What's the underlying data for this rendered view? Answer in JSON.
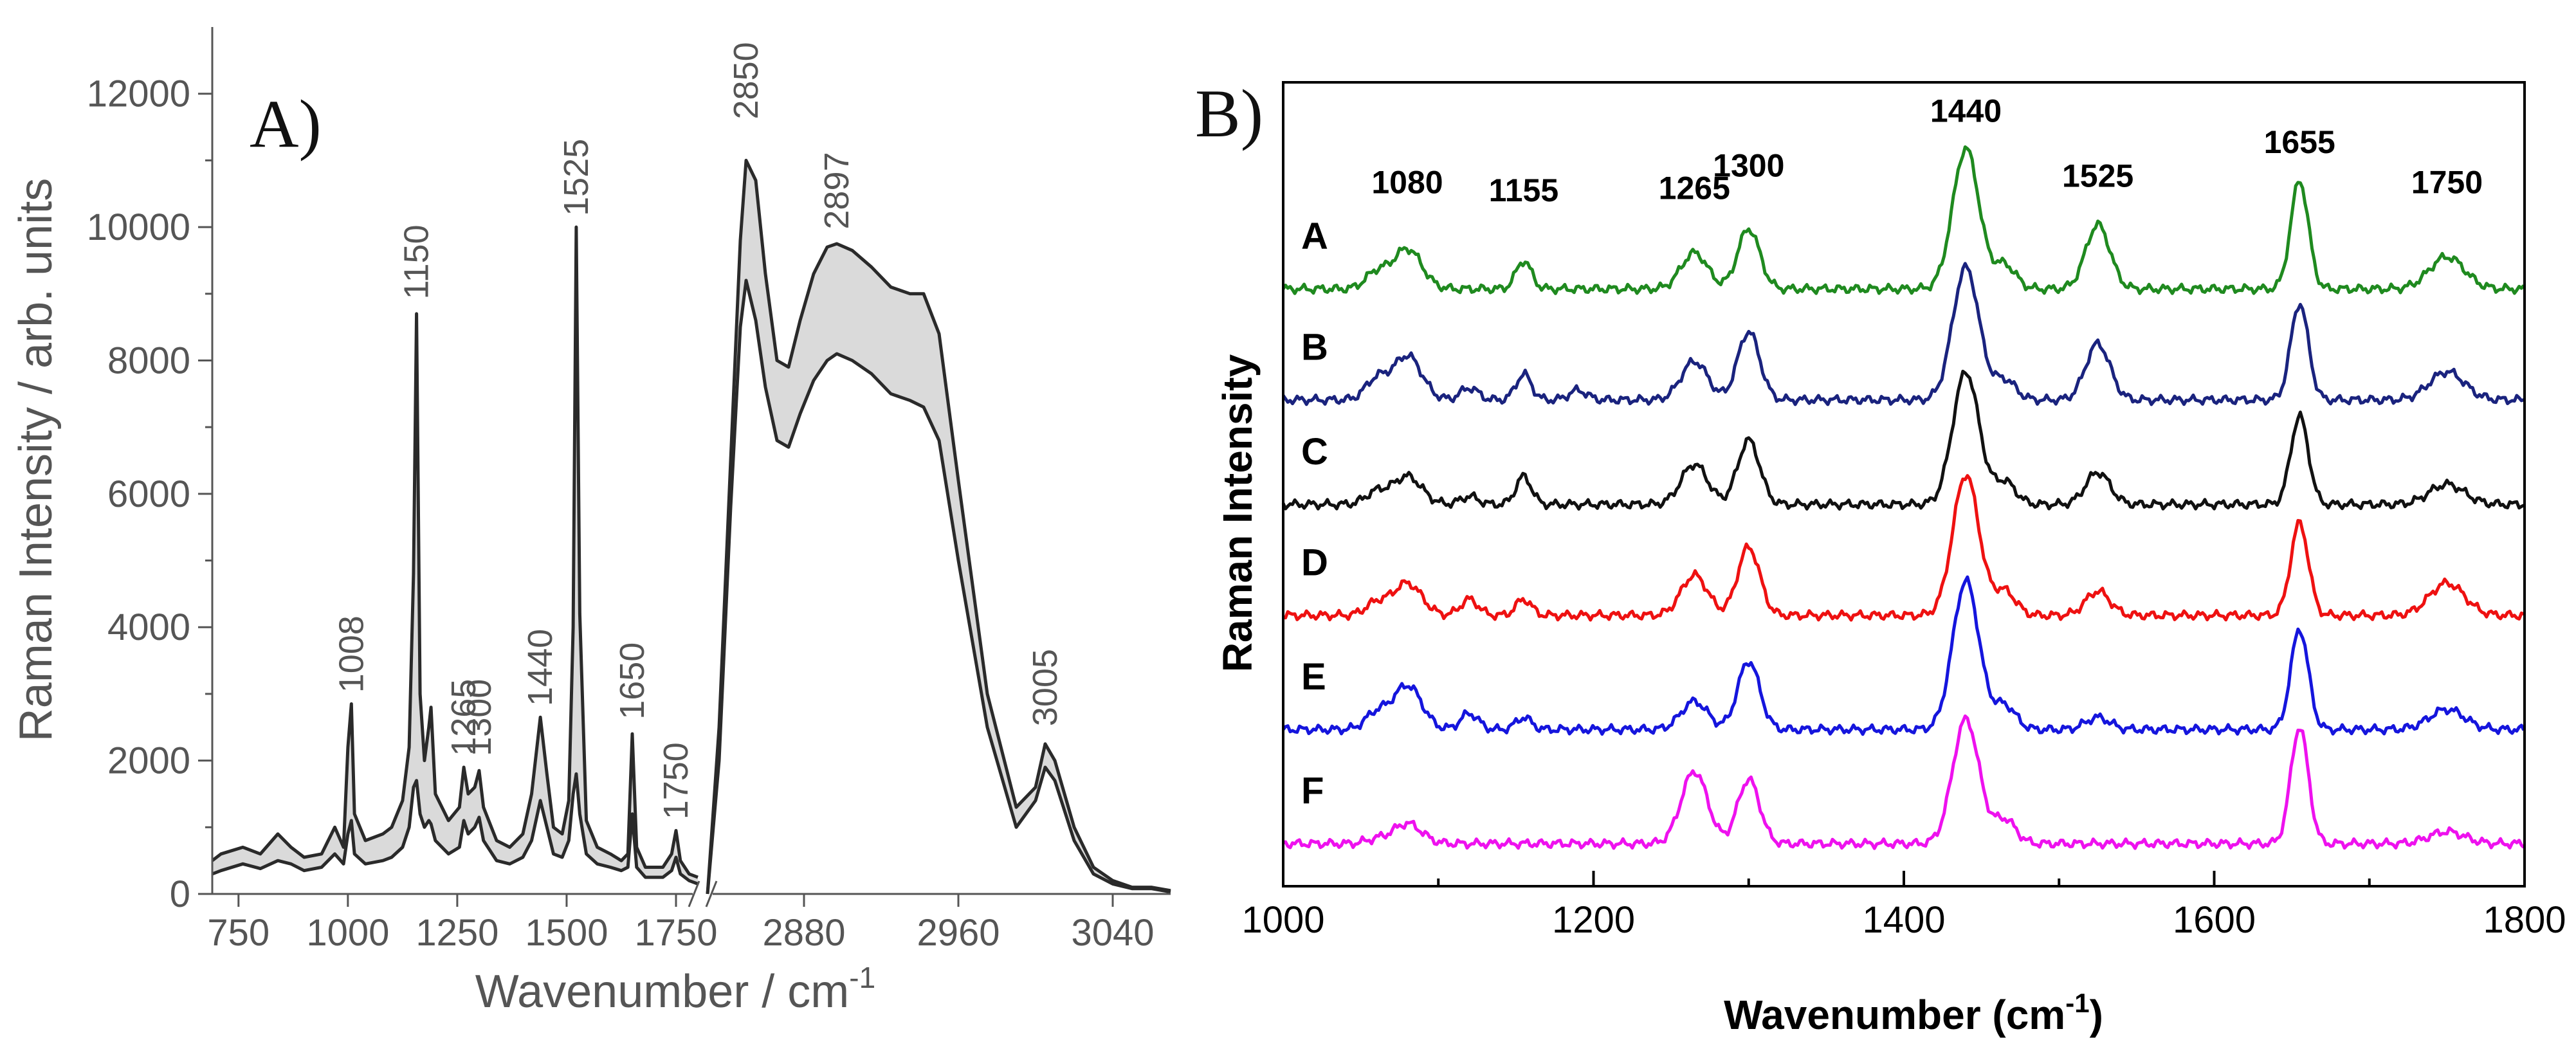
{
  "chart_data": [
    {
      "panel_label": "A)",
      "type": "line",
      "ylabel": "Raman Intensity / arb. units",
      "xlabel": "Wavenumber / cm",
      "xlabel_superscript": "-1",
      "ylim": [
        0,
        13000
      ],
      "yticks": [
        "0",
        "2000",
        "4000",
        "6000",
        "8000",
        "10000",
        "12000"
      ],
      "ytick_values": [
        0,
        2000,
        4000,
        6000,
        8000,
        10000,
        12000
      ],
      "xticks_left": [
        "750",
        "1000",
        "1250",
        "1500",
        "1750"
      ],
      "xtick_values_left": [
        750,
        1000,
        1250,
        1500,
        1750
      ],
      "xticks_right": [
        "2880",
        "2960",
        "3040"
      ],
      "xtick_values_right": [
        2880,
        2960,
        3040
      ],
      "x_segment_left": [
        690,
        1800
      ],
      "x_segment_right": [
        2830,
        3070
      ],
      "axis_break": true,
      "band_color": "#bbbbbb",
      "line_color": "#2a2a2a",
      "peak_labels": [
        {
          "text": "1008",
          "x": 1008,
          "y": 2900
        },
        {
          "text": "1150",
          "x": 1157,
          "y": 8800
        },
        {
          "text": "1265",
          "x": 1265,
          "y": 1950
        },
        {
          "text": "1300",
          "x": 1300,
          "y": 1950
        },
        {
          "text": "1440",
          "x": 1440,
          "y": 2700
        },
        {
          "text": "1525",
          "x": 1522,
          "y": 10050
        },
        {
          "text": "1650",
          "x": 1650,
          "y": 2500
        },
        {
          "text": "1750",
          "x": 1750,
          "y": 1000
        },
        {
          "text": "2850",
          "x": 2850,
          "y": 11500
        },
        {
          "text": "2897",
          "x": 2897,
          "y": 9850
        },
        {
          "text": "3005",
          "x": 3005,
          "y": 2400
        }
      ],
      "series": [
        {
          "name": "upper",
          "left_x": [
            690,
            710,
            760,
            800,
            840,
            870,
            900,
            940,
            970,
            990,
            1000,
            1008,
            1015,
            1040,
            1080,
            1100,
            1125,
            1140,
            1150,
            1157,
            1165,
            1175,
            1185,
            1190,
            1200,
            1230,
            1255,
            1265,
            1275,
            1290,
            1300,
            1310,
            1340,
            1370,
            1400,
            1420,
            1440,
            1455,
            1470,
            1490,
            1505,
            1515,
            1522,
            1530,
            1545,
            1570,
            1600,
            1625,
            1640,
            1650,
            1660,
            1680,
            1720,
            1740,
            1750,
            1760,
            1780,
            1800
          ],
          "left_y": [
            500,
            600,
            700,
            600,
            900,
            700,
            550,
            600,
            1000,
            700,
            2200,
            2850,
            1200,
            800,
            900,
            1000,
            1400,
            2200,
            4800,
            8700,
            3000,
            2000,
            2500,
            2800,
            1500,
            1100,
            1300,
            1900,
            1500,
            1600,
            1850,
            1300,
            800,
            700,
            900,
            1500,
            2650,
            1800,
            1000,
            900,
            1400,
            4000,
            10000,
            4200,
            1100,
            700,
            600,
            500,
            600,
            2400,
            700,
            400,
            400,
            600,
            950,
            500,
            300,
            250
          ],
          "right_x": [
            2830,
            2836,
            2842,
            2847,
            2850,
            2855,
            2860,
            2866,
            2872,
            2878,
            2885,
            2892,
            2897,
            2905,
            2915,
            2925,
            2935,
            2942,
            2950,
            2960,
            2975,
            2990,
            3000,
            3005,
            3010,
            3020,
            3030,
            3040,
            3050,
            3060,
            3070
          ],
          "right_y": [
            0,
            2500,
            6500,
            9800,
            11000,
            10700,
            9300,
            8000,
            7900,
            8600,
            9300,
            9700,
            9750,
            9650,
            9400,
            9100,
            9000,
            9000,
            8400,
            6200,
            3000,
            1300,
            1600,
            2250,
            2000,
            1000,
            400,
            200,
            100,
            100,
            50
          ]
        },
        {
          "name": "lower",
          "left_x": [
            690,
            710,
            760,
            800,
            840,
            870,
            900,
            940,
            970,
            990,
            1000,
            1008,
            1015,
            1040,
            1080,
            1100,
            1125,
            1140,
            1150,
            1157,
            1165,
            1175,
            1185,
            1190,
            1200,
            1230,
            1255,
            1265,
            1275,
            1290,
            1300,
            1310,
            1340,
            1370,
            1400,
            1420,
            1440,
            1455,
            1470,
            1490,
            1505,
            1515,
            1522,
            1530,
            1545,
            1570,
            1600,
            1625,
            1640,
            1650,
            1660,
            1680,
            1720,
            1740,
            1750,
            1760,
            1780,
            1800
          ],
          "left_y": [
            300,
            350,
            450,
            380,
            500,
            450,
            350,
            400,
            600,
            450,
            900,
            1100,
            600,
            450,
            500,
            550,
            700,
            1000,
            1600,
            1700,
            1200,
            1000,
            1100,
            1050,
            800,
            600,
            700,
            1100,
            900,
            1000,
            1150,
            800,
            500,
            450,
            550,
            800,
            1400,
            1000,
            600,
            550,
            800,
            1500,
            1800,
            1200,
            600,
            450,
            400,
            350,
            400,
            1200,
            400,
            250,
            250,
            350,
            550,
            300,
            200,
            150
          ],
          "right_x": [
            2830,
            2836,
            2842,
            2847,
            2850,
            2855,
            2860,
            2866,
            2872,
            2878,
            2885,
            2892,
            2897,
            2905,
            2915,
            2925,
            2935,
            2942,
            2950,
            2960,
            2975,
            2990,
            3000,
            3005,
            3010,
            3020,
            3030,
            3040,
            3050,
            3060,
            3070
          ],
          "right_y": [
            0,
            2000,
            5800,
            8500,
            9200,
            8600,
            7600,
            6800,
            6700,
            7200,
            7700,
            8000,
            8100,
            8000,
            7800,
            7500,
            7400,
            7300,
            6800,
            5000,
            2500,
            1000,
            1400,
            1900,
            1700,
            800,
            300,
            150,
            80,
            80,
            30
          ]
        }
      ]
    },
    {
      "panel_label": "B)",
      "type": "line",
      "ylabel": "Raman Intensity",
      "xlabel": "Wavenumber (cm",
      "xlabel_superscript": "-1",
      "xlabel_suffix": ")",
      "xlim": [
        1000,
        1800
      ],
      "xticks": [
        "1000",
        "1200",
        "1400",
        "1600",
        "1800"
      ],
      "xtick_values": [
        1000,
        1200,
        1400,
        1600,
        1800
      ],
      "y_units": "arbitrary (0 = bottom of plot, 1000 = top of plot)",
      "ylim": [
        0,
        1000
      ],
      "peak_labels": [
        {
          "text": "1080",
          "x": 1080,
          "y": 862
        },
        {
          "text": "1155",
          "x": 1155,
          "y": 852
        },
        {
          "text": "1265",
          "x": 1265,
          "y": 855
        },
        {
          "text": "1300",
          "x": 1300,
          "y": 883
        },
        {
          "text": "1440",
          "x": 1440,
          "y": 951
        },
        {
          "text": "1525",
          "x": 1525,
          "y": 870
        },
        {
          "text": "1655",
          "x": 1655,
          "y": 912
        },
        {
          "text": "1750",
          "x": 1750,
          "y": 862
        }
      ],
      "peaks_x": [
        1060,
        1080,
        1120,
        1155,
        1190,
        1265,
        1300,
        1440,
        1465,
        1525,
        1655,
        1750
      ],
      "series": [
        {
          "name": "A",
          "color": "#1f8a1f",
          "baseline": 743,
          "amplitudes": [
            20,
            50,
            0,
            35,
            0,
            45,
            75,
            175,
            30,
            80,
            135,
            40
          ]
        },
        {
          "name": "B",
          "color": "#1a237e",
          "baseline": 605,
          "amplitudes": [
            25,
            55,
            15,
            32,
            12,
            48,
            85,
            165,
            25,
            70,
            120,
            35
          ]
        },
        {
          "name": "C",
          "color": "#111111",
          "baseline": 475,
          "amplitudes": [
            15,
            35,
            10,
            35,
            0,
            50,
            80,
            165,
            28,
            40,
            110,
            25
          ]
        },
        {
          "name": "D",
          "color": "#ee1111",
          "baseline": 337,
          "amplitudes": [
            15,
            40,
            20,
            20,
            0,
            50,
            85,
            175,
            30,
            30,
            115,
            40
          ]
        },
        {
          "name": "E",
          "color": "#1515dd",
          "baseline": 195,
          "amplitudes": [
            20,
            55,
            20,
            15,
            0,
            35,
            85,
            185,
            30,
            15,
            125,
            25
          ]
        },
        {
          "name": "F",
          "color": "#ee11ee",
          "baseline": 53,
          "amplitudes": [
            5,
            25,
            0,
            0,
            0,
            90,
            80,
            155,
            30,
            0,
            145,
            15
          ]
        }
      ]
    }
  ]
}
